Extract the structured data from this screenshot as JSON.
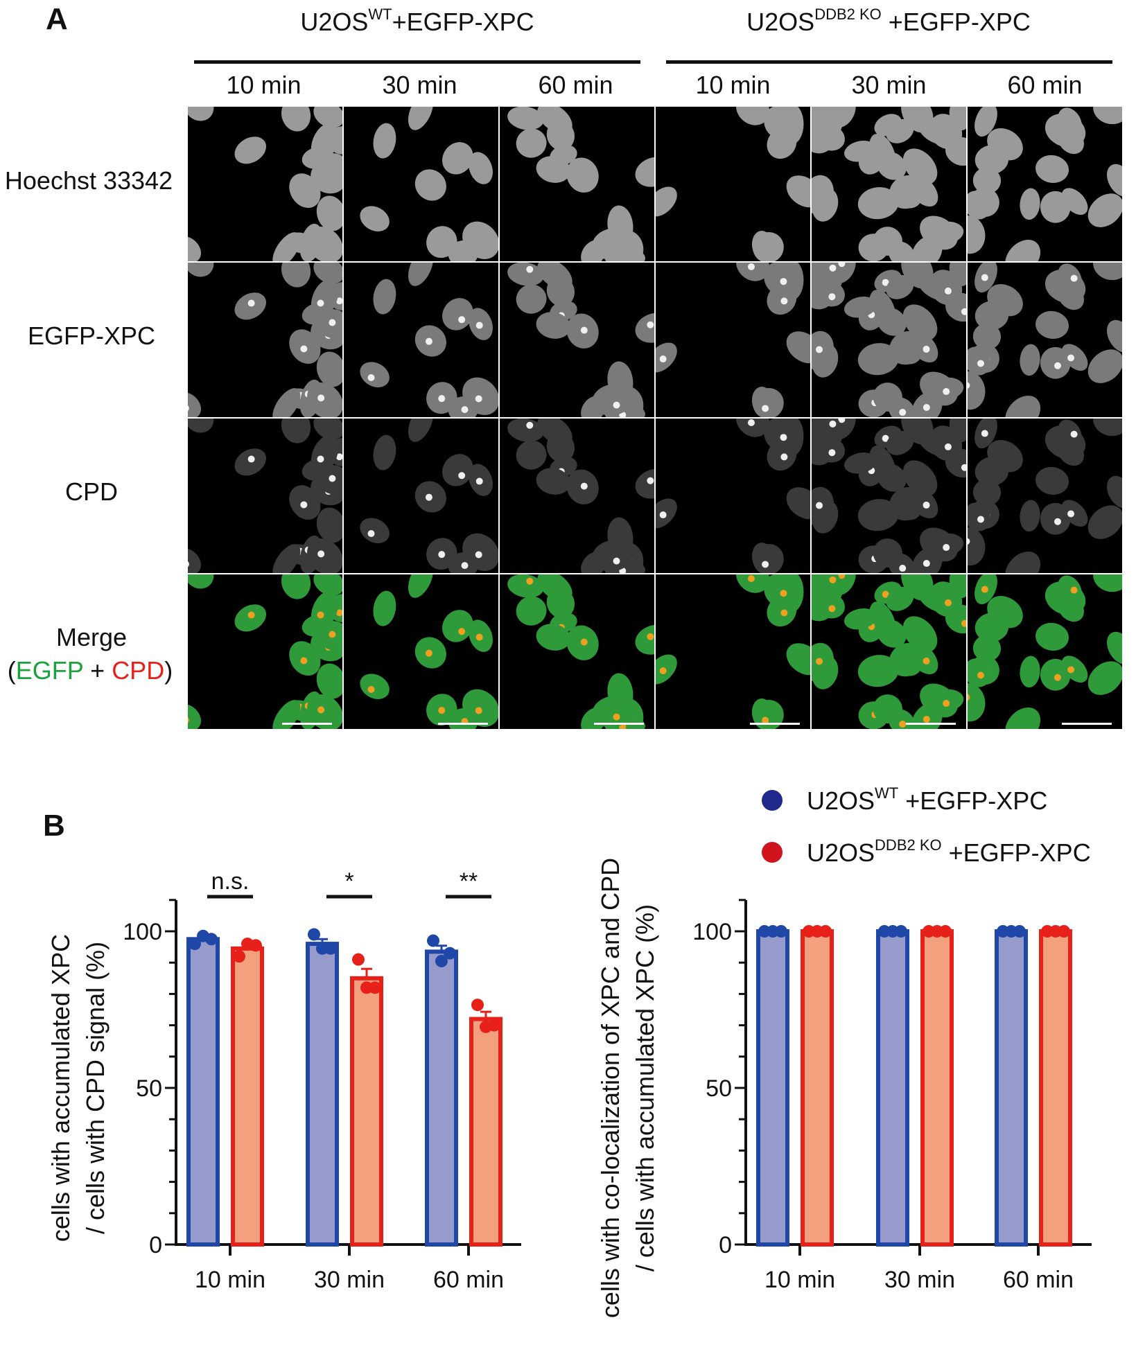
{
  "panel_a": {
    "letter": "A",
    "groups": [
      {
        "base": "U2OS",
        "sup": "WT",
        "rest": "+EGFP-XPC"
      },
      {
        "base": "U2OS",
        "sup": "DDB2 KO",
        "rest": " +EGFP-XPC"
      }
    ],
    "timepoints": [
      "10 min",
      "30 min",
      "60 min",
      "10 min",
      "30 min",
      "60 min"
    ],
    "rows": [
      "Hoechst 33342",
      "EGFP-XPC",
      "CPD"
    ],
    "merge": {
      "title": "Merge",
      "open": "(",
      "egfp": "EGFP",
      "plus": " + ",
      "cpd": "CPD",
      "close": ")"
    },
    "colors": {
      "egfp": "#1aa33a",
      "cpd": "#e8201a"
    }
  },
  "panel_b": {
    "letter": "B"
  },
  "legend": [
    {
      "base": "U2OS",
      "sup": "WT",
      "rest": " +EGFP-XPC",
      "color": "#1f2a8c"
    },
    {
      "base": "U2OS",
      "sup": "DDB2 KO",
      "rest": " +EGFP-XPC",
      "color": "#d0141e"
    }
  ],
  "chart_data": [
    {
      "type": "bar",
      "ylabel_line1": "cells with accumulated XPC",
      "ylabel_line2": "/ cells with CPD signal (%)",
      "categories": [
        "10 min",
        "30 min",
        "60 min"
      ],
      "ylim": [
        0,
        110
      ],
      "yticks": [
        "0",
        "50",
        "100"
      ],
      "series": [
        {
          "key": "wt",
          "values": [
            97.5,
            96,
            93.5
          ],
          "points": [
            [
              96,
              98.5,
              97.5
            ],
            [
              99,
              94.5,
              94.5
            ],
            [
              97,
              90.5,
              93
            ]
          ],
          "sem": [
            0.8,
            1.5,
            1.9
          ],
          "fill": "#969bcb",
          "stroke": "#1f47a8"
        },
        {
          "key": "ko",
          "values": [
            94.5,
            85,
            72
          ],
          "points": [
            [
              92,
              96,
              95.5
            ],
            [
              91,
              82,
              82
            ],
            [
              76.5,
              69.5,
              70
            ]
          ],
          "sem": [
            1.2,
            3,
            2.3
          ],
          "fill": "#f2a07e",
          "stroke": "#e8201a"
        }
      ],
      "significance": [
        "n.s.",
        "*",
        "**"
      ]
    },
    {
      "type": "bar",
      "ylabel_line1": "cells with co-localization of XPC and CPD",
      "ylabel_line2": "/ cells with accumulated XPC (%)",
      "categories": [
        "10 min",
        "30 min",
        "60 min"
      ],
      "ylim": [
        0,
        110
      ],
      "yticks": [
        "0",
        "50",
        "100"
      ],
      "series": [
        {
          "key": "wt",
          "values": [
            100,
            100,
            100
          ],
          "points": [
            [
              100,
              100,
              100
            ],
            [
              100,
              100,
              100
            ],
            [
              100,
              100,
              100
            ]
          ],
          "sem": [
            0,
            0,
            0
          ],
          "fill": "#969bcb",
          "stroke": "#1f47a8"
        },
        {
          "key": "ko",
          "values": [
            100,
            100,
            100
          ],
          "points": [
            [
              100,
              100,
              100
            ],
            [
              100,
              100,
              100
            ],
            [
              100,
              100,
              100
            ]
          ],
          "sem": [
            0,
            0,
            0
          ],
          "fill": "#f2a07e",
          "stroke": "#e8201a"
        }
      ]
    }
  ]
}
